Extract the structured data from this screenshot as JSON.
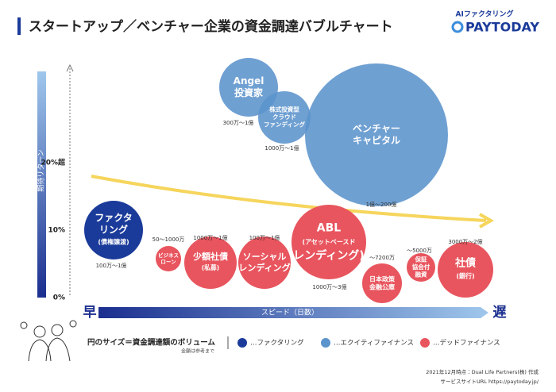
{
  "header": {
    "title": "スタートアップ／ベンチャー企業の資金調達バブルチャート"
  },
  "brand": {
    "tagline": "AIファクタリング",
    "name": "PAYTODAY"
  },
  "axes": {
    "y_label": "期待リターン",
    "y_ticks": [
      "0%",
      "10%",
      "20%超"
    ],
    "x_label": "スピード（日数）",
    "x_start": "早",
    "x_end": "遅"
  },
  "bubbles": [
    {
      "lines": [
        "Angel",
        "投資家"
      ],
      "range": "300万〜1億",
      "group": "equity"
    },
    {
      "lines": [
        "株式投資型",
        "クラウド",
        "ファンディング"
      ],
      "range": "1000万〜1億",
      "group": "equity"
    },
    {
      "lines": [
        "ベンチャー",
        "キャピタル"
      ],
      "range": "1億〜200億",
      "group": "equity"
    },
    {
      "lines": [
        "ファクタ",
        "リング",
        "(債権譲渡)"
      ],
      "range": "100万〜1億",
      "group": "factoring"
    },
    {
      "lines": [
        "ビジネス",
        "ローン"
      ],
      "range": "50〜1000万",
      "group": "debt"
    },
    {
      "lines": [
        "少額社債",
        "(私募)"
      ],
      "range": "1000万〜1億",
      "group": "debt"
    },
    {
      "lines": [
        "ソーシャル",
        "レンディング"
      ],
      "range": "100万〜1億",
      "group": "debt"
    },
    {
      "lines": [
        "ABL",
        "(アセットベースド",
        "レンディング)"
      ],
      "range": "1000万〜3億",
      "group": "debt"
    },
    {
      "lines": [
        "日本政策",
        "金融公庫"
      ],
      "range": "〜7200万",
      "group": "debt"
    },
    {
      "lines": [
        "保証",
        "協会付",
        "融資"
      ],
      "range": "〜5000万",
      "group": "debt"
    },
    {
      "lines": [
        "社債",
        "(銀行)"
      ],
      "range": "3000万〜2億",
      "group": "debt"
    }
  ],
  "legend": {
    "size_note": "円のサイズ＝資金調達額のボリューム",
    "size_subnote": "金額は参考まで",
    "items": [
      {
        "label": "…ファクタリング",
        "color": "#1b3b9a"
      },
      {
        "label": "…エクイティファイナンス",
        "color": "#5b93cc"
      },
      {
        "label": "…デッドファイナンス",
        "color": "#e8555e"
      }
    ]
  },
  "footer": {
    "date_note": "2021年12月時点：Dual Life Partners(株) 作成",
    "site": "サービスサイトURL  https://paytoday.jp/"
  }
}
